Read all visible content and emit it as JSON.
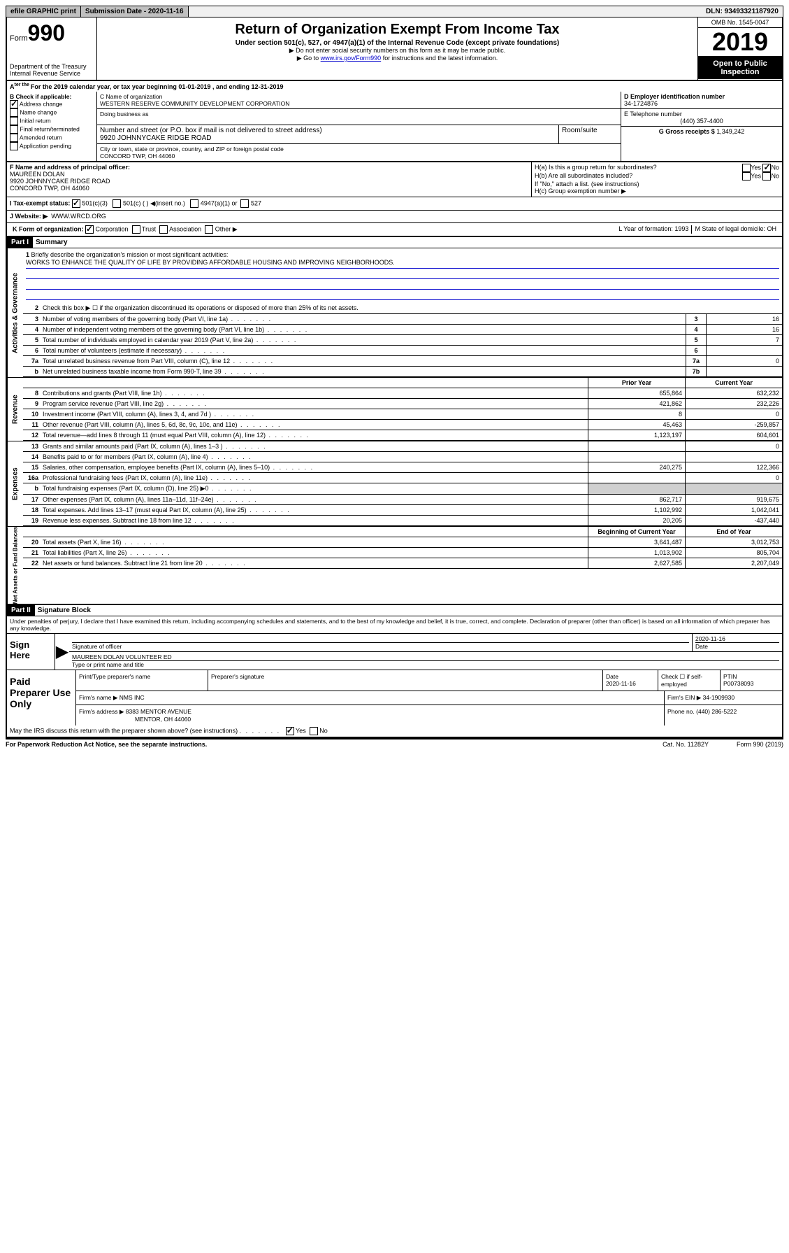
{
  "topbar": {
    "efile": "efile GRAPHIC print",
    "submission_label": "Submission Date - 2020-11-16",
    "dln": "DLN: 93493321187920"
  },
  "header": {
    "form_prefix": "Form",
    "form_number": "990",
    "dept": "Department of the Treasury\nInternal Revenue Service",
    "title": "Return of Organization Exempt From Income Tax",
    "subtitle": "Under section 501(c), 527, or 4947(a)(1) of the Internal Revenue Code (except private foundations)",
    "note1": "▶ Do not enter social security numbers on this form as it may be made public.",
    "note2_pre": "▶ Go to ",
    "note2_link": "www.irs.gov/Form990",
    "note2_post": " for instructions and the latest information.",
    "omb": "OMB No. 1545-0047",
    "year": "2019",
    "open": "Open to Public Inspection"
  },
  "cal": "For the 2019 calendar year, or tax year beginning 01-01-2019   , and ending 12-31-2019",
  "checkB": {
    "title": "B Check if applicable:",
    "items": [
      "Address change",
      "Name change",
      "Initial return",
      "Final return/terminated",
      "Amended return",
      "Application pending"
    ],
    "checked_idx": 0
  },
  "boxC": {
    "name_label": "C Name of organization",
    "name": "WESTERN RESERVE COMMUNITY DEVELOPMENT CORPORATION",
    "dba_label": "Doing business as",
    "addr_label": "Number and street (or P.O. box if mail is not delivered to street address)",
    "room_label": "Room/suite",
    "addr": "9920 JOHNNYCAKE RIDGE ROAD",
    "city_label": "City or town, state or province, country, and ZIP or foreign postal code",
    "city": "CONCORD TWP, OH  44060"
  },
  "boxD": {
    "label": "D Employer identification number",
    "val": "34-1724876"
  },
  "boxE": {
    "label": "E Telephone number",
    "val": "(440) 357-4400"
  },
  "boxG": {
    "label": "G Gross receipts $",
    "val": "1,349,242"
  },
  "boxF": {
    "label": "F  Name and address of principal officer:",
    "name": "MAUREEN DOLAN",
    "addr1": "9920 JOHNNYCAKE RIDGE ROAD",
    "addr2": "CONCORD TWP, OH  44060"
  },
  "boxH": {
    "ha": "H(a)  Is this a group return for subordinates?",
    "hb": "H(b)  Are all subordinates included?",
    "hb_note": "If \"No,\" attach a list. (see instructions)",
    "hc": "H(c)  Group exemption number ▶"
  },
  "taxStatus": {
    "label": "I   Tax-exempt status:",
    "opts": [
      "501(c)(3)",
      "501(c) (  ) ◀(insert no.)",
      "4947(a)(1) or",
      "527"
    ]
  },
  "website": {
    "label": "J   Website: ▶",
    "val": "WWW.WRCD.ORG"
  },
  "kRow": {
    "k": "K Form of organization:",
    "opts": [
      "Corporation",
      "Trust",
      "Association",
      "Other ▶"
    ],
    "l": "L Year of formation: 1993",
    "m": "M State of legal domicile: OH"
  },
  "part1": {
    "header": "Part I",
    "title": "Summary"
  },
  "mission": {
    "num": "1",
    "label": "Briefly describe the organization's mission or most significant activities:",
    "text": "WORKS TO ENHANCE THE QUALITY OF LIFE BY PROVIDING AFFORDABLE HOUSING AND IMPROVING NEIGHBORHOODS."
  },
  "gov_lines": [
    {
      "n": "2",
      "t": "Check this box ▶ ☐  if the organization discontinued its operations or disposed of more than 25% of its net assets."
    },
    {
      "n": "3",
      "t": "Number of voting members of the governing body (Part VI, line 1a)",
      "ref": "3",
      "v": "16"
    },
    {
      "n": "4",
      "t": "Number of independent voting members of the governing body (Part VI, line 1b)",
      "ref": "4",
      "v": "16"
    },
    {
      "n": "5",
      "t": "Total number of individuals employed in calendar year 2019 (Part V, line 2a)",
      "ref": "5",
      "v": "7"
    },
    {
      "n": "6",
      "t": "Total number of volunteers (estimate if necessary)",
      "ref": "6",
      "v": ""
    },
    {
      "n": "7a",
      "t": "Total unrelated business revenue from Part VIII, column (C), line 12",
      "ref": "7a",
      "v": "0"
    },
    {
      "n": "b",
      "t": "Net unrelated business taxable income from Form 990-T, line 39",
      "ref": "7b",
      "v": ""
    }
  ],
  "fin_header": {
    "prior": "Prior Year",
    "curr": "Current Year"
  },
  "revenue": [
    {
      "n": "8",
      "t": "Contributions and grants (Part VIII, line 1h)",
      "p": "655,864",
      "c": "632,232"
    },
    {
      "n": "9",
      "t": "Program service revenue (Part VIII, line 2g)",
      "p": "421,862",
      "c": "232,226"
    },
    {
      "n": "10",
      "t": "Investment income (Part VIII, column (A), lines 3, 4, and 7d )",
      "p": "8",
      "c": "0"
    },
    {
      "n": "11",
      "t": "Other revenue (Part VIII, column (A), lines 5, 6d, 8c, 9c, 10c, and 11e)",
      "p": "45,463",
      "c": "-259,857"
    },
    {
      "n": "12",
      "t": "Total revenue—add lines 8 through 11 (must equal Part VIII, column (A), line 12)",
      "p": "1,123,197",
      "c": "604,601"
    }
  ],
  "expenses": [
    {
      "n": "13",
      "t": "Grants and similar amounts paid (Part IX, column (A), lines 1–3 )",
      "p": "",
      "c": "0"
    },
    {
      "n": "14",
      "t": "Benefits paid to or for members (Part IX, column (A), line 4)",
      "p": "",
      "c": ""
    },
    {
      "n": "15",
      "t": "Salaries, other compensation, employee benefits (Part IX, column (A), lines 5–10)",
      "p": "240,275",
      "c": "122,366"
    },
    {
      "n": "16a",
      "t": "Professional fundraising fees (Part IX, column (A), line 11e)",
      "p": "",
      "c": "0"
    },
    {
      "n": "b",
      "t": "Total fundraising expenses (Part IX, column (D), line 25) ▶0",
      "p": "",
      "c": "",
      "shaded": true
    },
    {
      "n": "17",
      "t": "Other expenses (Part IX, column (A), lines 11a–11d, 11f–24e)",
      "p": "862,717",
      "c": "919,675"
    },
    {
      "n": "18",
      "t": "Total expenses. Add lines 13–17 (must equal Part IX, column (A), line 25)",
      "p": "1,102,992",
      "c": "1,042,041"
    },
    {
      "n": "19",
      "t": "Revenue less expenses. Subtract line 18 from line 12",
      "p": "20,205",
      "c": "-437,440"
    }
  ],
  "na_header": {
    "prior": "Beginning of Current Year",
    "curr": "End of Year"
  },
  "netassets": [
    {
      "n": "20",
      "t": "Total assets (Part X, line 16)",
      "p": "3,641,487",
      "c": "3,012,753"
    },
    {
      "n": "21",
      "t": "Total liabilities (Part X, line 26)",
      "p": "1,013,902",
      "c": "805,704"
    },
    {
      "n": "22",
      "t": "Net assets or fund balances. Subtract line 21 from line 20",
      "p": "2,627,585",
      "c": "2,207,049"
    }
  ],
  "sides": {
    "gov": "Activities & Governance",
    "rev": "Revenue",
    "exp": "Expenses",
    "na": "Net Assets or Fund Balances"
  },
  "part2": {
    "header": "Part II",
    "title": "Signature Block"
  },
  "perjury": "Under penalties of perjury, I declare that I have examined this return, including accompanying schedules and statements, and to the best of my knowledge and belief, it is true, correct, and complete. Declaration of preparer (other than officer) is based on all information of which preparer has any knowledge.",
  "sign": {
    "here": "Sign Here",
    "sig_label": "Signature of officer",
    "date": "2020-11-16",
    "date_label": "Date",
    "name": "MAUREEN DOLAN  VOLUNTEER ED",
    "name_label": "Type or print name and title"
  },
  "paid": {
    "title": "Paid Preparer Use Only",
    "h1": "Print/Type preparer's name",
    "h2": "Preparer's signature",
    "h3": "Date",
    "h3v": "2020-11-16",
    "h4": "Check ☐ if self-employed",
    "h5": "PTIN",
    "h5v": "P00738093",
    "firm_name_l": "Firm's name    ▶",
    "firm_name": "NMS INC",
    "firm_ein_l": "Firm's EIN ▶",
    "firm_ein": "34-1909930",
    "firm_addr_l": "Firm's address ▶",
    "firm_addr": "8383 MENTOR AVENUE",
    "firm_city": "MENTOR, OH  44060",
    "phone_l": "Phone no.",
    "phone": "(440) 286-5222"
  },
  "discuss": "May the IRS discuss this return with the preparer shown above? (see instructions)",
  "footer": {
    "l": "For Paperwork Reduction Act Notice, see the separate instructions.",
    "c": "Cat. No. 11282Y",
    "r": "Form 990 (2019)"
  }
}
